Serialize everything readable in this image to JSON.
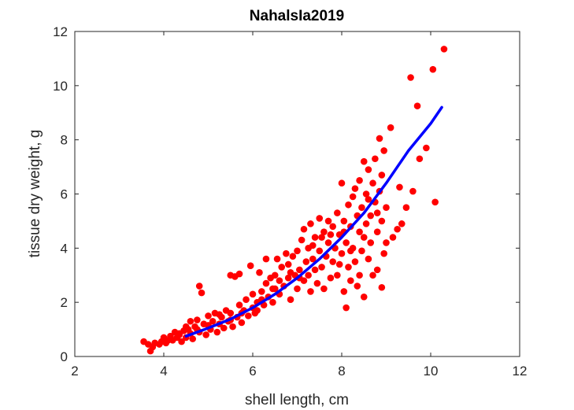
{
  "chart_data": {
    "type": "scatter",
    "title": "NahalsIa2019",
    "xlabel": "shell length, cm",
    "ylabel": "tissue dry weight, g",
    "xlim": [
      2,
      12
    ],
    "ylim": [
      0,
      12
    ],
    "xticks": [
      "2",
      "4",
      "6",
      "8",
      "10",
      "12"
    ],
    "yticks": [
      "0",
      "2",
      "4",
      "6",
      "8",
      "10",
      "12"
    ],
    "box": true,
    "grid": false,
    "legend": "none",
    "colors": {
      "points": "#ff0000",
      "fit": "#0000ff",
      "axis": "#262626"
    },
    "fit_curve": {
      "x": [
        4.5,
        5.0,
        5.5,
        6.0,
        6.5,
        7.0,
        7.5,
        8.0,
        8.5,
        9.0,
        9.5,
        10.0,
        10.25
      ],
      "y": [
        0.75,
        1.05,
        1.38,
        1.8,
        2.3,
        2.9,
        3.6,
        4.4,
        5.3,
        6.4,
        7.6,
        8.6,
        9.2
      ]
    },
    "points": [
      [
        3.55,
        0.55
      ],
      [
        3.65,
        0.45
      ],
      [
        3.7,
        0.2
      ],
      [
        3.75,
        0.35
      ],
      [
        3.8,
        0.5
      ],
      [
        3.9,
        0.45
      ],
      [
        3.95,
        0.55
      ],
      [
        4.0,
        0.7
      ],
      [
        4.05,
        0.5
      ],
      [
        4.1,
        0.6
      ],
      [
        4.15,
        0.75
      ],
      [
        4.2,
        0.6
      ],
      [
        4.25,
        0.9
      ],
      [
        4.3,
        0.7
      ],
      [
        4.35,
        0.8
      ],
      [
        4.4,
        0.55
      ],
      [
        4.45,
        0.95
      ],
      [
        4.5,
        0.7
      ],
      [
        4.55,
        1.0
      ],
      [
        4.6,
        0.85
      ],
      [
        4.6,
        1.3
      ],
      [
        4.65,
        0.65
      ],
      [
        4.7,
        1.1
      ],
      [
        4.75,
        1.35
      ],
      [
        4.8,
        0.9
      ],
      [
        4.8,
        2.6
      ],
      [
        4.85,
        2.35
      ],
      [
        4.9,
        1.2
      ],
      [
        4.95,
        0.8
      ],
      [
        5.0,
        1.5
      ],
      [
        5.05,
        1.0
      ],
      [
        5.1,
        1.3
      ],
      [
        5.15,
        1.6
      ],
      [
        5.2,
        0.9
      ],
      [
        5.25,
        1.2
      ],
      [
        5.3,
        1.45
      ],
      [
        5.35,
        1.05
      ],
      [
        5.4,
        1.7
      ],
      [
        5.45,
        1.3
      ],
      [
        5.5,
        3.0
      ],
      [
        5.5,
        1.6
      ],
      [
        5.55,
        1.1
      ],
      [
        5.6,
        2.95
      ],
      [
        5.65,
        1.45
      ],
      [
        5.7,
        1.9
      ],
      [
        5.7,
        3.05
      ],
      [
        5.75,
        1.25
      ],
      [
        5.8,
        1.7
      ],
      [
        5.85,
        2.1
      ],
      [
        5.9,
        1.5
      ],
      [
        5.95,
        3.35
      ],
      [
        6.0,
        1.8
      ],
      [
        6.0,
        2.3
      ],
      [
        6.05,
        1.6
      ],
      [
        6.1,
        2.0
      ],
      [
        6.15,
        3.1
      ],
      [
        6.2,
        2.4
      ],
      [
        6.25,
        1.9
      ],
      [
        6.3,
        2.7
      ],
      [
        6.3,
        3.6
      ],
      [
        6.35,
        2.2
      ],
      [
        6.4,
        2.9
      ],
      [
        6.45,
        2.0
      ],
      [
        6.5,
        3.0
      ],
      [
        6.5,
        2.5
      ],
      [
        6.55,
        3.6
      ],
      [
        6.6,
        2.3
      ],
      [
        6.65,
        3.3
      ],
      [
        6.7,
        2.6
      ],
      [
        6.75,
        3.8
      ],
      [
        6.8,
        2.9
      ],
      [
        6.8,
        3.4
      ],
      [
        6.85,
        2.1
      ],
      [
        6.9,
        3.7
      ],
      [
        6.95,
        3.0
      ],
      [
        7.0,
        2.5
      ],
      [
        7.0,
        3.9
      ],
      [
        7.05,
        3.2
      ],
      [
        7.1,
        4.3
      ],
      [
        7.15,
        2.8
      ],
      [
        7.15,
        4.7
      ],
      [
        7.2,
        3.5
      ],
      [
        7.25,
        3.0
      ],
      [
        7.25,
        4.0
      ],
      [
        7.3,
        2.4
      ],
      [
        7.3,
        4.9
      ],
      [
        7.35,
        3.6
      ],
      [
        7.4,
        3.2
      ],
      [
        7.4,
        4.4
      ],
      [
        7.45,
        2.7
      ],
      [
        7.5,
        5.1
      ],
      [
        7.5,
        3.9
      ],
      [
        7.55,
        3.3
      ],
      [
        7.6,
        4.6
      ],
      [
        7.6,
        2.5
      ],
      [
        7.65,
        3.7
      ],
      [
        7.7,
        5.0
      ],
      [
        7.7,
        4.2
      ],
      [
        7.75,
        2.9
      ],
      [
        7.8,
        4.8
      ],
      [
        7.8,
        3.5
      ],
      [
        7.85,
        4.0
      ],
      [
        7.9,
        5.3
      ],
      [
        7.9,
        3.0
      ],
      [
        7.95,
        4.5
      ],
      [
        8.0,
        6.4
      ],
      [
        8.0,
        3.8
      ],
      [
        8.05,
        5.0
      ],
      [
        8.05,
        2.4
      ],
      [
        8.1,
        4.2
      ],
      [
        8.1,
        1.8
      ],
      [
        8.15,
        5.6
      ],
      [
        8.15,
        3.3
      ],
      [
        8.2,
        4.8
      ],
      [
        8.2,
        2.8
      ],
      [
        8.25,
        5.9
      ],
      [
        8.25,
        4.0
      ],
      [
        8.3,
        6.2
      ],
      [
        8.3,
        3.5
      ],
      [
        8.35,
        5.2
      ],
      [
        8.35,
        2.6
      ],
      [
        8.4,
        4.6
      ],
      [
        8.4,
        6.5
      ],
      [
        8.45,
        3.9
      ],
      [
        8.45,
        5.5
      ],
      [
        8.5,
        7.2
      ],
      [
        8.5,
        2.2
      ],
      [
        8.55,
        4.9
      ],
      [
        8.55,
        6.0
      ],
      [
        8.6,
        3.6
      ],
      [
        8.6,
        6.9
      ],
      [
        8.65,
        5.2
      ],
      [
        8.65,
        4.2
      ],
      [
        8.7,
        6.4
      ],
      [
        8.7,
        3.0
      ],
      [
        8.75,
        5.7
      ],
      [
        8.75,
        7.3
      ],
      [
        8.8,
        4.6
      ],
      [
        8.8,
        3.2
      ],
      [
        8.85,
        6.1
      ],
      [
        8.85,
        8.05
      ],
      [
        8.9,
        5.0
      ],
      [
        8.9,
        2.55
      ],
      [
        8.95,
        7.6
      ],
      [
        8.95,
        3.8
      ],
      [
        9.0,
        5.5
      ],
      [
        9.0,
        4.2
      ],
      [
        9.1,
        8.45
      ],
      [
        9.15,
        4.4
      ],
      [
        9.25,
        4.7
      ],
      [
        9.3,
        6.25
      ],
      [
        9.35,
        4.9
      ],
      [
        9.45,
        5.5
      ],
      [
        9.55,
        10.3
      ],
      [
        9.6,
        6.1
      ],
      [
        9.7,
        9.25
      ],
      [
        9.75,
        7.3
      ],
      [
        9.9,
        7.7
      ],
      [
        10.05,
        10.6
      ],
      [
        10.1,
        5.7
      ],
      [
        10.3,
        11.35
      ],
      [
        4.35,
        0.85
      ],
      [
        4.5,
        1.1
      ],
      [
        4.75,
        1.0
      ],
      [
        5.0,
        1.15
      ],
      [
        5.25,
        1.55
      ],
      [
        5.5,
        1.35
      ],
      [
        5.75,
        1.6
      ],
      [
        6.1,
        1.7
      ],
      [
        6.2,
        2.1
      ],
      [
        6.45,
        2.5
      ],
      [
        6.6,
        2.8
      ],
      [
        6.85,
        3.1
      ],
      [
        7.05,
        2.9
      ],
      [
        7.35,
        4.1
      ],
      [
        7.55,
        4.4
      ],
      [
        7.75,
        4.5
      ],
      [
        7.95,
        3.4
      ],
      [
        8.05,
        4.6
      ],
      [
        8.2,
        3.9
      ],
      [
        8.4,
        3.0
      ],
      [
        8.5,
        4.4
      ],
      [
        8.6,
        5.8
      ],
      [
        8.8,
        5.3
      ],
      [
        8.9,
        6.7
      ]
    ]
  }
}
